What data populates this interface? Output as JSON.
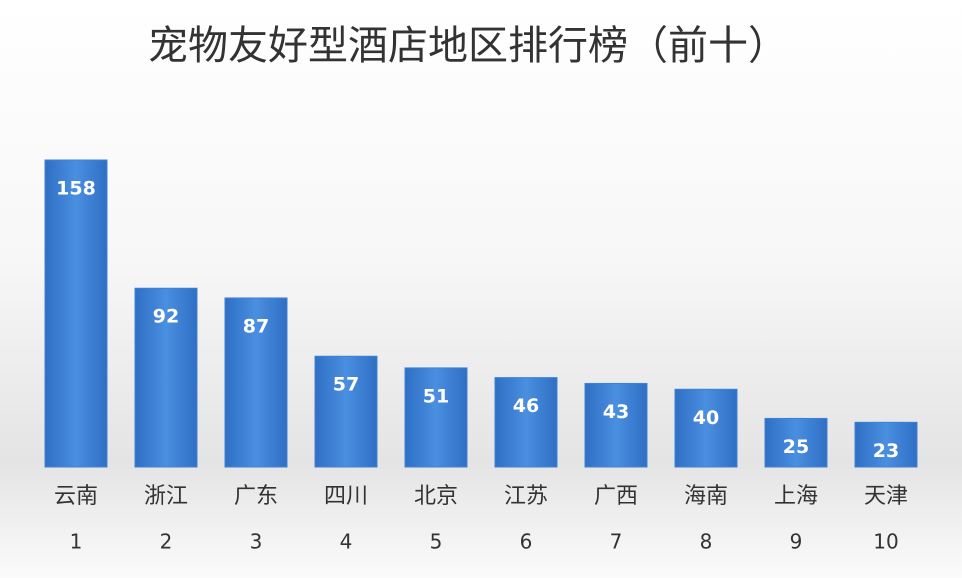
{
  "chart_data": {
    "type": "bar",
    "title": "宠物友好型酒店地区排行榜（前十）",
    "categories": [
      "云南",
      "浙江",
      "广东",
      "四川",
      "北京",
      "江苏",
      "广西",
      "海南",
      "上海",
      "天津"
    ],
    "ranks": [
      1,
      2,
      3,
      4,
      5,
      6,
      7,
      8,
      9,
      10
    ],
    "values": [
      158,
      92,
      87,
      57,
      51,
      46,
      43,
      40,
      25,
      23
    ],
    "color": "#3d82d6"
  }
}
